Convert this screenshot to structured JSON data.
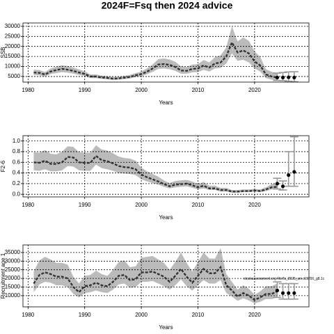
{
  "title": "2024F=Fsq then 2024 advice",
  "chart_data": [
    {
      "type": "line",
      "xlabel": "Years",
      "ylabel": "SSB",
      "xlim": [
        1979.1,
        2029.6
      ],
      "xticks": [
        1980,
        1990,
        2000,
        2010,
        2020
      ],
      "ylim": [
        2200,
        31700
      ],
      "yticks": [
        5000,
        10000,
        15000,
        20000,
        25000,
        30000
      ],
      "grid": true,
      "x": [
        1981,
        1982,
        1983,
        1984,
        1985,
        1986,
        1987,
        1988,
        1989,
        1990,
        1991,
        1992,
        1993,
        1994,
        1995,
        1996,
        1997,
        1998,
        1999,
        2000,
        2001,
        2002,
        2003,
        2004,
        2005,
        2006,
        2007,
        2008,
        2009,
        2010,
        2011,
        2012,
        2013,
        2014,
        2015,
        2016,
        2017,
        2018,
        2019,
        2020,
        2021,
        2022,
        2023,
        2024
      ],
      "series": [
        {
          "color": "#333333",
          "band_color": "#bbbbbb",
          "values": [
            7000,
            6800,
            6000,
            7500,
            8200,
            8800,
            8400,
            7800,
            7000,
            6300,
            5000,
            5000,
            4500,
            4300,
            3900,
            4100,
            4400,
            4800,
            5600,
            6200,
            7400,
            9000,
            11000,
            11200,
            10800,
            9800,
            8000,
            7800,
            8800,
            9000,
            10500,
            9500,
            11500,
            12000,
            15000,
            22000,
            17000,
            18000,
            16500,
            12500,
            10500,
            6000,
            5000,
            4500
          ],
          "lower": [
            5800,
            5600,
            5000,
            6200,
            6700,
            7200,
            6900,
            6400,
            5800,
            5200,
            4200,
            4200,
            3800,
            3600,
            3300,
            3400,
            3700,
            4000,
            4700,
            5100,
            6100,
            7300,
            8800,
            9000,
            8600,
            7800,
            6400,
            6300,
            7100,
            7200,
            8300,
            7500,
            9000,
            9300,
            11500,
            16500,
            12800,
            13300,
            12000,
            9000,
            7500,
            4200,
            3400,
            3000
          ],
          "upper": [
            8400,
            8200,
            7200,
            9000,
            9900,
            10600,
            10200,
            9500,
            8500,
            7600,
            6000,
            6000,
            5400,
            5200,
            4700,
            4900,
            5300,
            5800,
            6700,
            7500,
            9000,
            11000,
            13700,
            14000,
            13500,
            12300,
            10100,
            9700,
            10900,
            11200,
            13200,
            12000,
            14700,
            15500,
            19500,
            30000,
            22500,
            24500,
            22800,
            17500,
            14800,
            8600,
            7300,
            6700
          ]
        }
      ],
      "forecast": {
        "color": "#000000",
        "bar_color": "#999999",
        "x": [
          2024,
          2025,
          2026,
          2027
        ],
        "values": [
          4500,
          4500,
          4600,
          4500
        ],
        "lower": [
          3000,
          2900,
          2600,
          2400
        ],
        "upper": [
          6700,
          7000,
          7300,
          7400
        ]
      }
    },
    {
      "type": "line",
      "xlabel": "Years",
      "ylabel": "F2-6",
      "xlim": [
        1979.1,
        2029.6
      ],
      "xticks": [
        1980,
        1990,
        2000,
        2010,
        2020
      ],
      "ylim": [
        -0.05,
        1.1
      ],
      "yticks": [
        {
          "value": 0,
          "label": "0.0"
        },
        0.2,
        0.4,
        0.6,
        0.8,
        {
          "value": 1,
          "label": "1.0"
        }
      ],
      "grid": true,
      "x": [
        1981,
        1982,
        1983,
        1984,
        1985,
        1986,
        1987,
        1988,
        1989,
        1990,
        1991,
        1992,
        1993,
        1994,
        1995,
        1996,
        1997,
        1998,
        1999,
        2000,
        2001,
        2002,
        2003,
        2004,
        2005,
        2006,
        2007,
        2008,
        2009,
        2010,
        2011,
        2012,
        2013,
        2014,
        2015,
        2016,
        2017,
        2018,
        2019,
        2020,
        2021,
        2022,
        2023,
        2024
      ],
      "series": [
        {
          "color": "#333333",
          "band_color": "#bbbbbb",
          "values": [
            0.6,
            0.59,
            0.63,
            0.57,
            0.57,
            0.6,
            0.7,
            0.69,
            0.6,
            0.59,
            0.59,
            0.72,
            0.64,
            0.62,
            0.58,
            0.53,
            0.51,
            0.5,
            0.47,
            0.37,
            0.32,
            0.28,
            0.24,
            0.19,
            0.15,
            0.18,
            0.19,
            0.2,
            0.17,
            0.13,
            0.16,
            0.11,
            0.11,
            0.08,
            0.08,
            0.05,
            0.05,
            0.06,
            0.06,
            0.07,
            0.06,
            0.09,
            0.13,
            0.14
          ],
          "lower": [
            0.45,
            0.44,
            0.47,
            0.43,
            0.43,
            0.45,
            0.53,
            0.52,
            0.45,
            0.44,
            0.44,
            0.56,
            0.49,
            0.47,
            0.44,
            0.4,
            0.39,
            0.38,
            0.36,
            0.28,
            0.24,
            0.21,
            0.18,
            0.14,
            0.11,
            0.13,
            0.14,
            0.15,
            0.12,
            0.09,
            0.11,
            0.08,
            0.08,
            0.05,
            0.05,
            0.03,
            0.03,
            0.04,
            0.04,
            0.05,
            0.04,
            0.06,
            0.09,
            0.09
          ],
          "upper": [
            0.79,
            0.78,
            0.83,
            0.76,
            0.75,
            0.8,
            0.9,
            0.89,
            0.79,
            0.78,
            0.78,
            0.92,
            0.84,
            0.82,
            0.77,
            0.71,
            0.68,
            0.67,
            0.63,
            0.5,
            0.43,
            0.38,
            0.33,
            0.26,
            0.21,
            0.25,
            0.26,
            0.27,
            0.24,
            0.19,
            0.23,
            0.16,
            0.16,
            0.12,
            0.12,
            0.08,
            0.08,
            0.09,
            0.09,
            0.1,
            0.09,
            0.13,
            0.19,
            0.21
          ]
        }
      ],
      "forecast": {
        "color": "#000000",
        "bar_color": "#999999",
        "x": [
          2024,
          2025,
          2026,
          2027
        ],
        "values": [
          0.2,
          0.15,
          0.36,
          0.42
        ],
        "lower": [
          0.1,
          0.08,
          0.15,
          0.15
        ],
        "upper": [
          0.3,
          0.25,
          0.8,
          1.08
        ]
      }
    },
    {
      "type": "line",
      "xlabel": "Years",
      "ylabel": "Recruitment age 1",
      "annotation": "stockassessment.org RisTa_2025_sm.r19200_g8.1c",
      "xlim": [
        1979.1,
        2029.6
      ],
      "xticks": [
        1980,
        1990,
        2000,
        2010,
        2020
      ],
      "ylim": [
        3500,
        39400
      ],
      "yticks": [
        10000,
        15000,
        20000,
        25000,
        30000,
        35000
      ],
      "grid": true,
      "x": [
        1981,
        1982,
        1983,
        1984,
        1985,
        1986,
        1987,
        1988,
        1989,
        1990,
        1991,
        1992,
        1993,
        1994,
        1995,
        1996,
        1997,
        1998,
        1999,
        2000,
        2001,
        2002,
        2003,
        2004,
        2005,
        2006,
        2007,
        2008,
        2009,
        2010,
        2011,
        2012,
        2013,
        2014,
        2015,
        2016,
        2017,
        2018,
        2019,
        2020,
        2021,
        2022,
        2023,
        2024
      ],
      "series": [
        {
          "color": "#333333",
          "band_color": "#bbbbbb",
          "values": [
            17000,
            22000,
            23500,
            22500,
            21000,
            21000,
            20000,
            15000,
            12000,
            15500,
            16000,
            17500,
            16000,
            15500,
            18000,
            21500,
            22000,
            19000,
            19500,
            23500,
            23500,
            24000,
            22500,
            21000,
            18000,
            21500,
            25500,
            21000,
            17500,
            21500,
            25500,
            23000,
            23000,
            26500,
            16000,
            13000,
            9500,
            11500,
            10000,
            7500,
            9000,
            11000,
            11000,
            12500
          ],
          "lower": [
            12000,
            16500,
            18000,
            17500,
            16000,
            16000,
            15000,
            11000,
            9000,
            11500,
            12000,
            13000,
            12000,
            11500,
            13500,
            16500,
            17000,
            14500,
            15000,
            18000,
            18000,
            18500,
            17000,
            15500,
            13500,
            16000,
            19500,
            15500,
            13000,
            16000,
            19000,
            17000,
            17000,
            19000,
            11500,
            9500,
            7000,
            8500,
            7200,
            5500,
            6500,
            8000,
            8000,
            9000
          ],
          "upper": [
            24000,
            30500,
            32500,
            31000,
            29000,
            29000,
            28000,
            21000,
            17000,
            21500,
            22000,
            24500,
            22500,
            21500,
            25000,
            29500,
            30500,
            26500,
            27000,
            32000,
            32500,
            33000,
            31000,
            29000,
            25000,
            29500,
            35000,
            29000,
            24000,
            29500,
            35000,
            31500,
            31500,
            37500,
            22500,
            18000,
            13500,
            16000,
            14000,
            10500,
            12500,
            15500,
            15500,
            17000
          ]
        }
      ],
      "forecast": {
        "color": "#000000",
        "bar_color": "#999999",
        "x": [
          2024,
          2025,
          2026,
          2027
        ],
        "values": [
          13000,
          11500,
          11500,
          11500
        ],
        "lower": [
          9000,
          8000,
          8000,
          8000
        ],
        "upper": [
          18000,
          17000,
          17000,
          17000
        ]
      }
    }
  ]
}
